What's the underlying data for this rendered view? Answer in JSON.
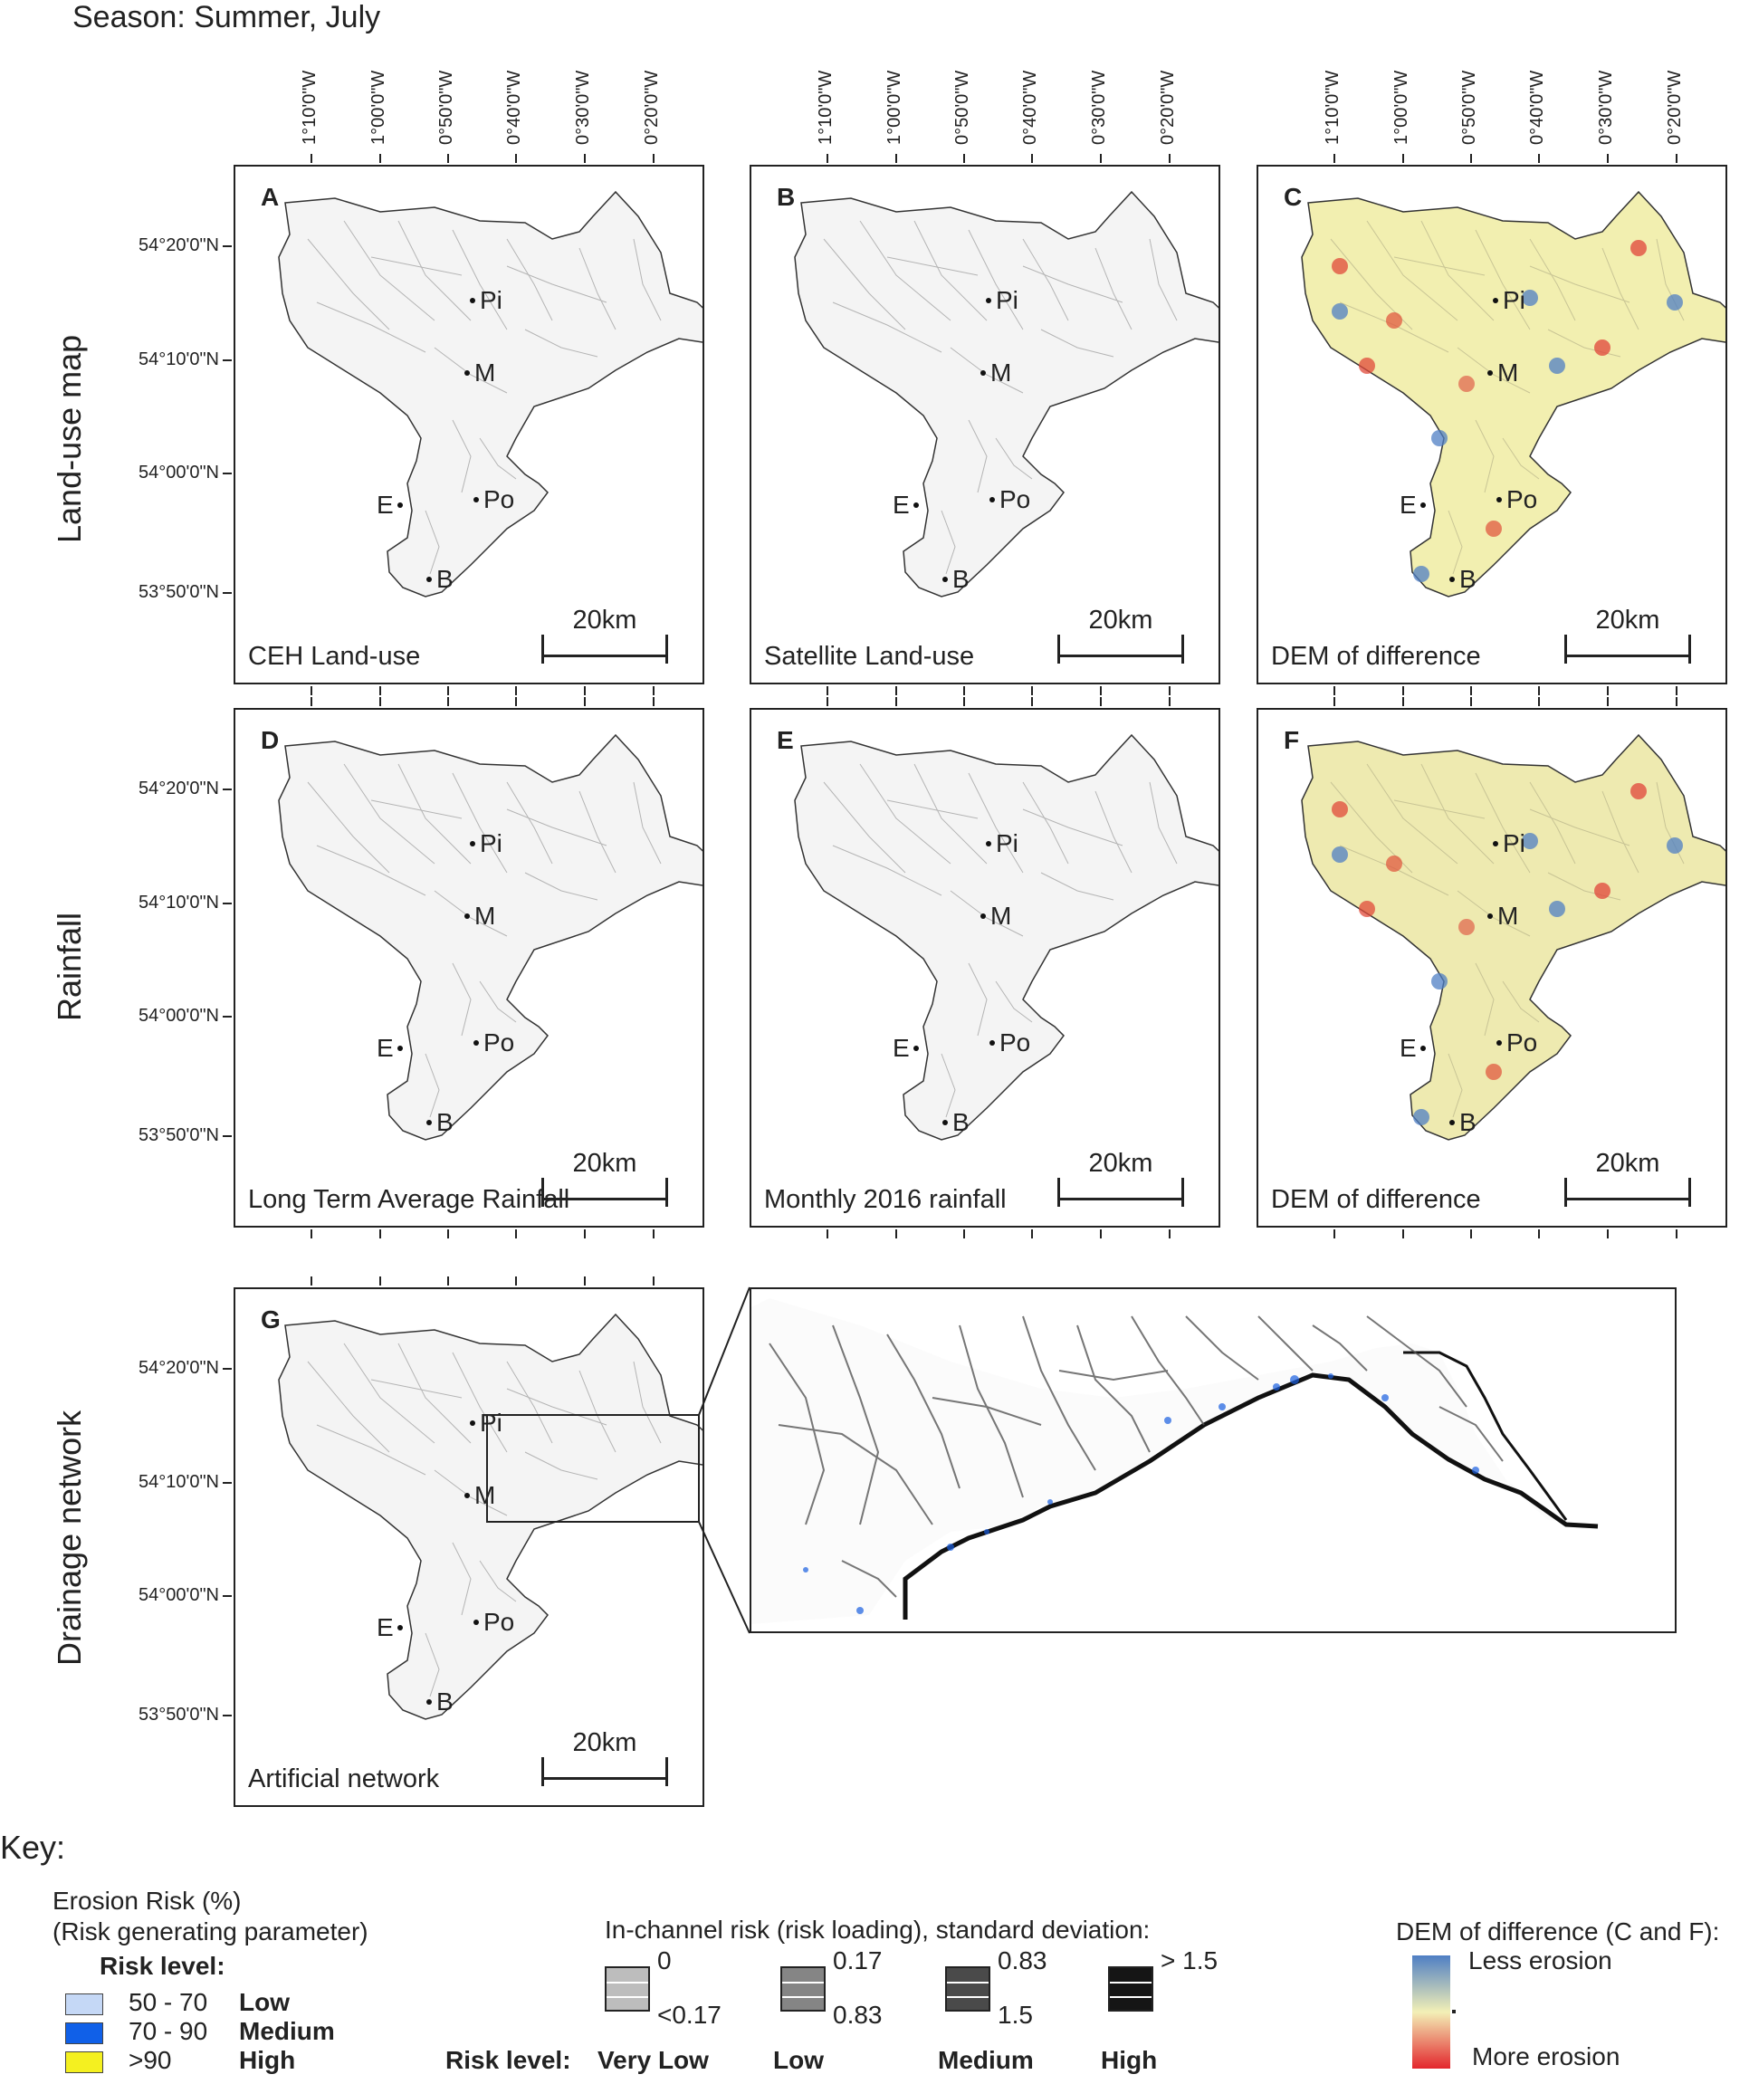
{
  "season": "Season: Summer, July",
  "row_labels": [
    "Land-use map",
    "Rainfall",
    "Drainage network"
  ],
  "longitudes": [
    "1°10'0\"W",
    "1°00'0\"W",
    "0°50'0\"W",
    "0°40'0\"W",
    "0°30'0\"W",
    "0°20'0\"W"
  ],
  "latitudes": [
    "54°20'0\"N",
    "54°10'0\"N",
    "54°00'0\"N",
    "53°50'0\"N"
  ],
  "scale_label": "20km",
  "places": [
    "Pi",
    "M",
    "E",
    "Po",
    "B"
  ],
  "panels": [
    {
      "letter": "A",
      "caption": "CEH Land-use",
      "colour_fill": "#f4f4f4"
    },
    {
      "letter": "B",
      "caption": "Satellite Land-use",
      "colour_fill": "#f4f4f4"
    },
    {
      "letter": "C",
      "caption": "DEM of difference",
      "colour_fill": "#f2efb0"
    },
    {
      "letter": "D",
      "caption": "Long Term Average Rainfall",
      "colour_fill": "#f4f4f4"
    },
    {
      "letter": "E",
      "caption": "Monthly 2016 rainfall",
      "colour_fill": "#f4f4f4"
    },
    {
      "letter": "F",
      "caption": "DEM of difference",
      "colour_fill": "#eeeab0"
    },
    {
      "letter": "G",
      "caption": "Artificial network",
      "colour_fill": "#f4f4f4"
    }
  ],
  "key": {
    "title": "Key:",
    "erosion_title": "Erosion Risk (%)",
    "erosion_subtitle": "(Risk generating parameter)",
    "risk_level_label": "Risk level:",
    "erosion_items": [
      {
        "range": "50 - 70",
        "level": "Low",
        "color": "#c5d8f6"
      },
      {
        "range": "70 - 90",
        "level": "Medium",
        "color": "#1060e8"
      },
      {
        "range": ">90",
        "level": "High",
        "color": "#f4f020"
      }
    ],
    "channel_title": "In-channel risk (risk loading), standard deviation:",
    "channel_items": [
      {
        "top": "0",
        "bottom": "<0.17",
        "level": "Very Low",
        "color": "#bdbdbd"
      },
      {
        "top": "0.17",
        "bottom": "0.83",
        "level": "Low",
        "color": "#858585"
      },
      {
        "top": "0.83",
        "bottom": "1.5",
        "level": "Medium",
        "color": "#4a4a4a"
      },
      {
        "top": "> 1.5",
        "bottom": "",
        "level": "High",
        "color": "#151515"
      }
    ],
    "channel_risk_label": "Risk level:",
    "dem_title": "DEM of difference (C and F):",
    "dem_less": "Less erosion",
    "dem_more": "More erosion",
    "dem_colors": [
      "#4f7fc4",
      "#f3f0b6",
      "#e3262d"
    ]
  }
}
